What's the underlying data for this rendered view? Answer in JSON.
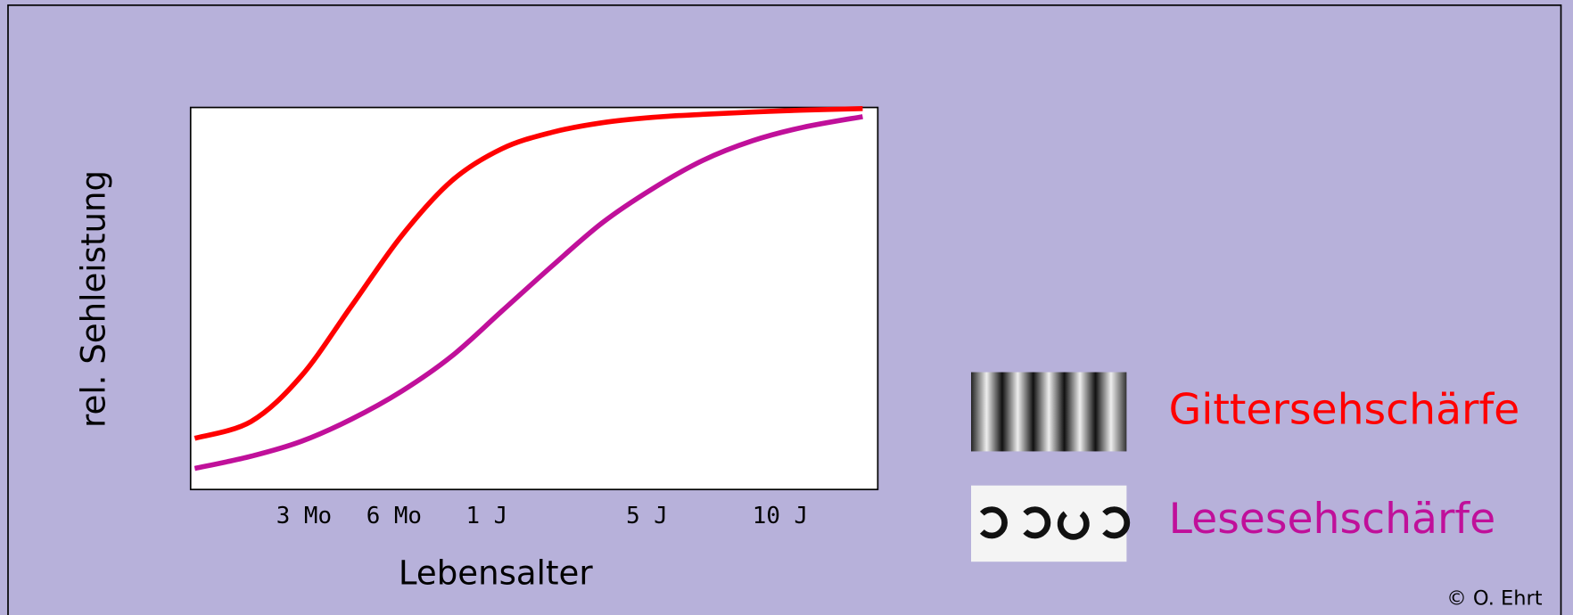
{
  "chart_data": {
    "type": "line",
    "x_label": "Lebensalter",
    "y_label": "rel. Sehleistung",
    "x": [
      0.6,
      8.8,
      16.1,
      23.4,
      30.7,
      38,
      45.3,
      52.6,
      59.9,
      67.2,
      74.5,
      81.8,
      89.1,
      97.8
    ],
    "series": [
      {
        "name": "Gittersehschärfe",
        "color": "#ff0000",
        "values": [
          13.4,
          17.8,
          29.7,
          48,
          66.4,
          80.8,
          89.2,
          93.5,
          96,
          97.4,
          98.2,
          98.8,
          99.3,
          99.7
        ]
      },
      {
        "name": "Lesesehschärfe",
        "color": "#c0109a",
        "values": [
          5.5,
          8.7,
          12.6,
          18.4,
          25.7,
          34.9,
          46.7,
          58.5,
          69.8,
          78.7,
          86.1,
          91.3,
          94.8,
          97.6
        ]
      }
    ],
    "xlim": [
      0,
      100
    ],
    "ylim": [
      0,
      100
    ],
    "xticks": [
      {
        "value": 16.5,
        "label": "3 Mo"
      },
      {
        "value": 29.6,
        "label": "6 Mo"
      },
      {
        "value": 43.1,
        "label": "1 J"
      },
      {
        "value": 66.4,
        "label": "5 J"
      },
      {
        "value": 85.8,
        "label": "10 J"
      }
    ],
    "grid": false,
    "credit": "© O. Ehrt"
  }
}
